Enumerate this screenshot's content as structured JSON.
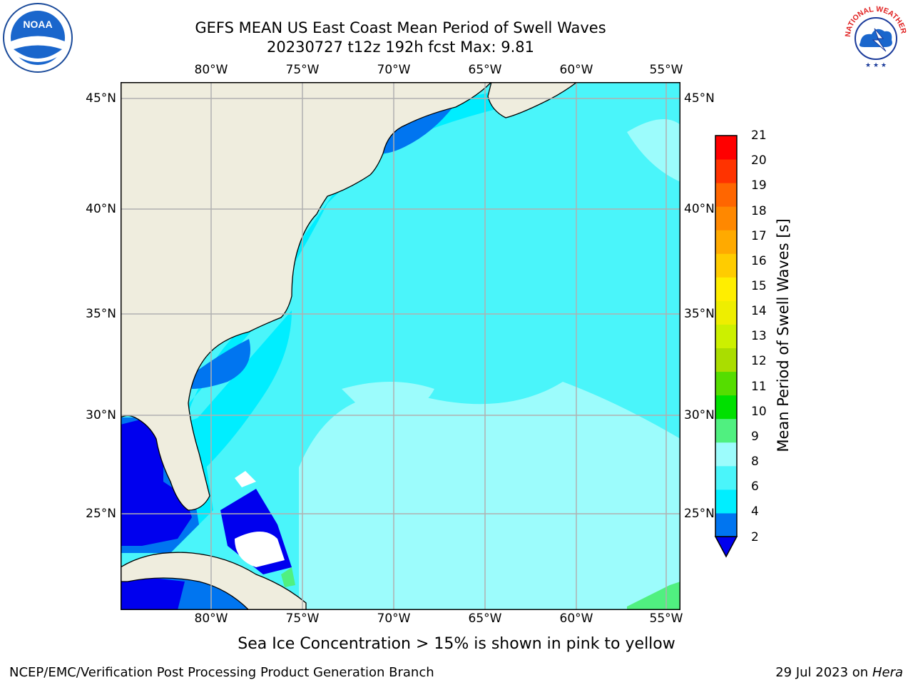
{
  "title_line1": "GEFS MEAN US East Coast Mean Period of Swell Waves",
  "title_line2": "20230727 t12z 192h fcst   Max: 9.81",
  "map": {
    "lon_ticks": [
      "80°W",
      "75°W",
      "70°W",
      "65°W",
      "60°W",
      "55°W"
    ],
    "lat_ticks": [
      "45°N",
      "40°N",
      "35°N",
      "30°N",
      "25°N"
    ],
    "land_color": "#efedde",
    "grid_color": "#b0b0b0"
  },
  "colorbar": {
    "label": "Mean Period of Swell Waves [s]",
    "ticks": [
      "21",
      "20",
      "19",
      "18",
      "17",
      "16",
      "15",
      "14",
      "13",
      "12",
      "11",
      "10",
      "9",
      "8",
      "6",
      "4",
      "2"
    ],
    "colors": [
      "#0000ee",
      "#0075f0",
      "#00eeff",
      "#4af5fa",
      "#9cfcfc",
      "#50f080",
      "#00e000",
      "#55dd00",
      "#aadd00",
      "#ccf000",
      "#eeee00",
      "#ffee00",
      "#ffcc00",
      "#ffaa00",
      "#ff8800",
      "#ff6600",
      "#ff3300",
      "#ff0000"
    ]
  },
  "caption": "Sea Ice Concentration > 15% is shown in pink to yellow",
  "footer": {
    "left": "NCEP/EMC/Verification Post Processing Product Generation Branch",
    "right_date": "29 Jul 2023 on ",
    "right_host": "Hera"
  },
  "logos": {
    "noaa_text": "NOAA",
    "nws_text": "NATIONAL WEATHER SERVICE"
  }
}
